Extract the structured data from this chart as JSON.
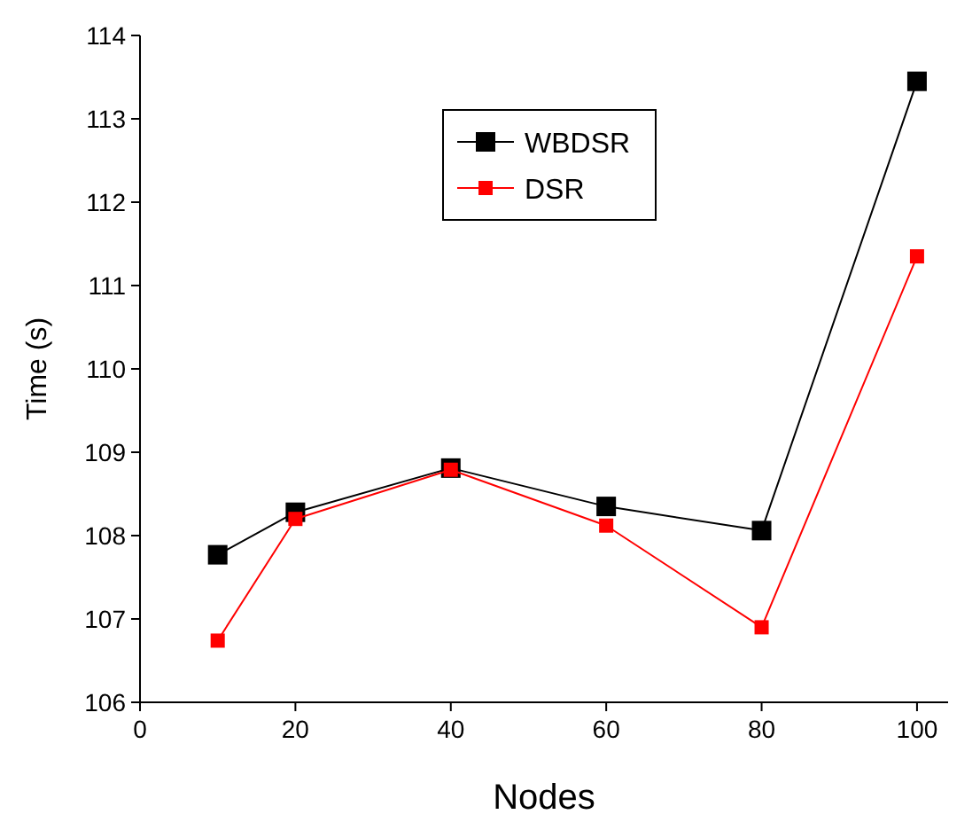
{
  "chart_data": {
    "type": "line",
    "xlabel": "Nodes",
    "ylabel": "Time (s)",
    "x": [
      10,
      20,
      40,
      60,
      80,
      100
    ],
    "series": [
      {
        "name": "WBDSR",
        "color": "#000000",
        "values": [
          107.77,
          108.28,
          108.81,
          108.35,
          108.06,
          113.45
        ]
      },
      {
        "name": "DSR",
        "color": "#ff0000",
        "values": [
          106.74,
          108.2,
          108.79,
          108.12,
          106.9,
          111.35
        ]
      }
    ],
    "xlim": [
      0,
      104
    ],
    "xticks": [
      0,
      20,
      40,
      60,
      80,
      100
    ],
    "ylim": [
      106,
      114
    ],
    "yticks": [
      106,
      107,
      108,
      109,
      110,
      111,
      112,
      113,
      114
    ],
    "grid": false,
    "legend": "top",
    "marker": "square",
    "line_style": "solid"
  }
}
